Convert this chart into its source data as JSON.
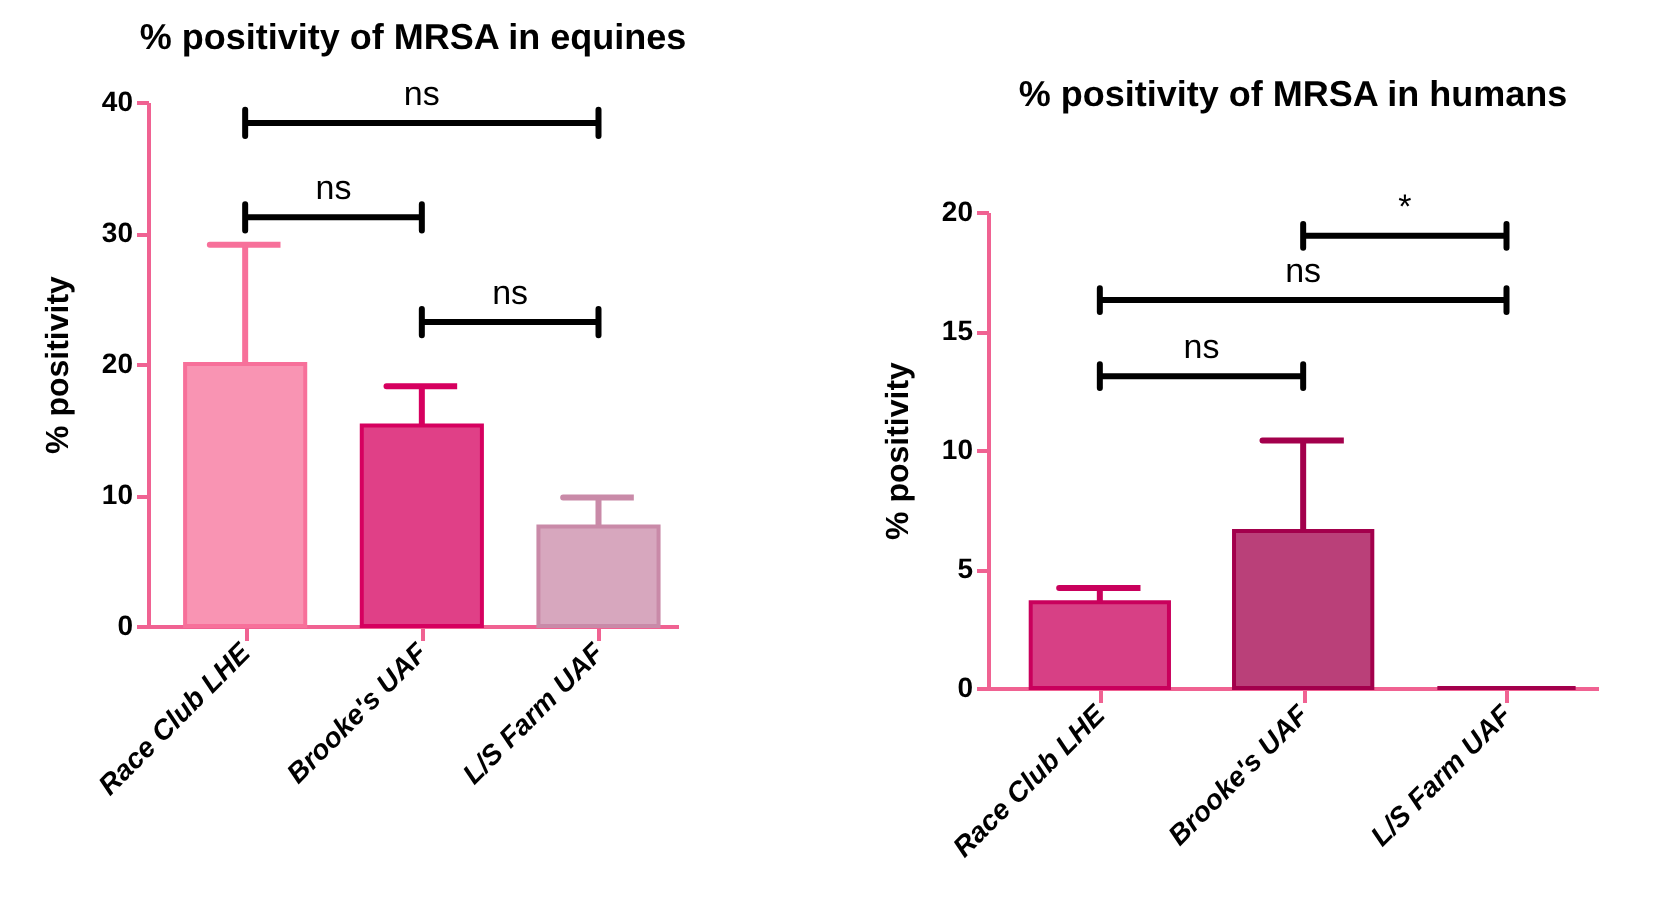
{
  "chart_data": [
    {
      "type": "bar",
      "title": "% positivity of MRSA in equines",
      "ylabel": "% positivity",
      "categories": [
        "Race Club LHE",
        "Brooke's UAF",
        "L/S Farm UAF"
      ],
      "values": [
        20,
        15.3,
        7.6
      ],
      "errors": [
        [
          20,
          29.1
        ],
        [
          15.3,
          18.3
        ],
        [
          7.6,
          9.8
        ]
      ],
      "colors": [
        "#f7709a",
        "#d6005f",
        "#c98aa8"
      ],
      "ylim": [
        0,
        40
      ],
      "yticks": [
        0,
        10,
        20,
        30,
        40
      ],
      "annotations": [
        "ns",
        "ns",
        "ns"
      ]
    },
    {
      "type": "bar",
      "title": "% positivity of MRSA in humans",
      "ylabel": "% positivity",
      "categories": [
        "Race Club LHE",
        "Brooke's UAF",
        "L/S Farm UAF"
      ],
      "values": [
        3.6,
        6.6,
        0
      ],
      "errors": [
        [
          3.6,
          4.2
        ],
        [
          6.6,
          10.4
        ],
        null
      ],
      "colors": [
        "#c9005c",
        "#a3004c",
        "#a3004c"
      ],
      "ylim": [
        0,
        20
      ],
      "yticks": [
        0,
        5,
        10,
        15,
        20
      ],
      "annotations": [
        "ns",
        "ns",
        "*"
      ]
    }
  ]
}
